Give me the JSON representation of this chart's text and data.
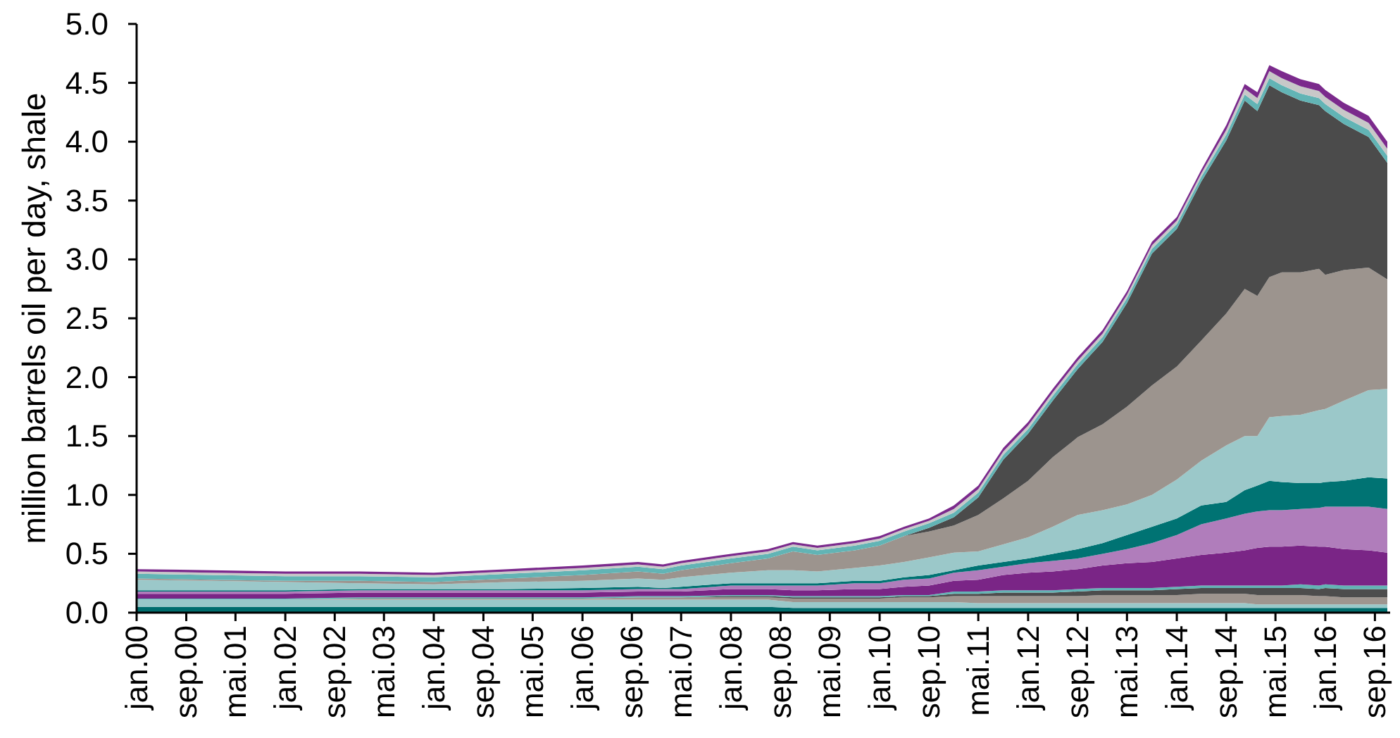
{
  "chart_data": {
    "type": "area",
    "stacked": true,
    "ylabel": "million barrels oil per day, shale",
    "x": [
      "2000-01",
      "2001-01",
      "2002-01",
      "2003-01",
      "2004-01",
      "2005-01",
      "2006-01",
      "2006-10",
      "2007-02",
      "2007-05",
      "2008-01",
      "2008-07",
      "2008-11",
      "2009-03",
      "2009-09",
      "2010-01",
      "2010-05",
      "2010-09",
      "2011-01",
      "2011-05",
      "2011-09",
      "2012-01",
      "2012-05",
      "2012-09",
      "2013-01",
      "2013-05",
      "2013-09",
      "2014-01",
      "2014-05",
      "2014-09",
      "2014-12",
      "2015-02",
      "2015-04",
      "2015-06",
      "2015-09",
      "2015-12",
      "2016-01",
      "2016-04",
      "2016-08",
      "2016-11"
    ],
    "xlim": [
      "2000-01",
      "2016-11"
    ],
    "xticks": [
      {
        "value": "2000-01",
        "label": "jan.00"
      },
      {
        "value": "2000-09",
        "label": "sep.00"
      },
      {
        "value": "2001-05",
        "label": "mai.01"
      },
      {
        "value": "2002-01",
        "label": "jan.02"
      },
      {
        "value": "2002-09",
        "label": "sep.02"
      },
      {
        "value": "2003-05",
        "label": "mai.03"
      },
      {
        "value": "2004-01",
        "label": "jan.04"
      },
      {
        "value": "2004-09",
        "label": "sep.04"
      },
      {
        "value": "2005-05",
        "label": "mai.05"
      },
      {
        "value": "2006-01",
        "label": "jan.06"
      },
      {
        "value": "2006-09",
        "label": "sep.06"
      },
      {
        "value": "2007-05",
        "label": "mai.07"
      },
      {
        "value": "2008-01",
        "label": "jan.08"
      },
      {
        "value": "2008-09",
        "label": "sep.08"
      },
      {
        "value": "2009-05",
        "label": "mai.09"
      },
      {
        "value": "2010-01",
        "label": "jan.10"
      },
      {
        "value": "2010-09",
        "label": "sep.10"
      },
      {
        "value": "2011-05",
        "label": "mai.11"
      },
      {
        "value": "2012-01",
        "label": "jan.12"
      },
      {
        "value": "2012-09",
        "label": "sep.12"
      },
      {
        "value": "2013-05",
        "label": "mai.13"
      },
      {
        "value": "2014-01",
        "label": "jan.14"
      },
      {
        "value": "2014-09",
        "label": "sep.14"
      },
      {
        "value": "2015-05",
        "label": "mai.15"
      },
      {
        "value": "2016-01",
        "label": "jan.16"
      },
      {
        "value": "2016-09",
        "label": "sep.16"
      }
    ],
    "ylim": [
      0,
      5
    ],
    "yticks": [
      {
        "value": 0,
        "label": "0.0"
      },
      {
        "value": 0.5,
        "label": "0.5"
      },
      {
        "value": 1,
        "label": "1.0"
      },
      {
        "value": 1.5,
        "label": "1.5"
      },
      {
        "value": 2,
        "label": "2.0"
      },
      {
        "value": 2.5,
        "label": "2.5"
      },
      {
        "value": 3,
        "label": "3.0"
      },
      {
        "value": 3.5,
        "label": "3.5"
      },
      {
        "value": 4,
        "label": "4.0"
      },
      {
        "value": 4.5,
        "label": "4.5"
      },
      {
        "value": 5,
        "label": "5.0"
      }
    ],
    "series": [
      {
        "color": "#006d6d",
        "values": [
          0.05,
          0.05,
          0.05,
          0.05,
          0.05,
          0.05,
          0.05,
          0.05,
          0.05,
          0.05,
          0.05,
          0.05,
          0.04,
          0.04,
          0.04,
          0.04,
          0.04,
          0.04,
          0.04,
          0.04,
          0.04,
          0.04,
          0.04,
          0.04,
          0.04,
          0.04,
          0.04,
          0.04,
          0.04,
          0.04,
          0.04,
          0.04,
          0.04,
          0.04,
          0.04,
          0.04,
          0.04,
          0.04,
          0.04,
          0.04
        ]
      },
      {
        "color": "#99c8c9",
        "values": [
          0.06,
          0.06,
          0.06,
          0.06,
          0.06,
          0.06,
          0.06,
          0.06,
          0.06,
          0.06,
          0.06,
          0.06,
          0.05,
          0.05,
          0.05,
          0.05,
          0.05,
          0.05,
          0.05,
          0.04,
          0.04,
          0.04,
          0.04,
          0.04,
          0.04,
          0.04,
          0.04,
          0.04,
          0.04,
          0.04,
          0.04,
          0.03,
          0.03,
          0.03,
          0.03,
          0.03,
          0.03,
          0.03,
          0.03,
          0.03
        ]
      },
      {
        "color": "#9e958f",
        "values": [
          0,
          0,
          0,
          0.01,
          0.01,
          0.01,
          0.01,
          0.02,
          0.02,
          0.02,
          0.02,
          0.02,
          0.03,
          0.03,
          0.03,
          0.03,
          0.04,
          0.04,
          0.05,
          0.06,
          0.06,
          0.06,
          0.06,
          0.06,
          0.07,
          0.07,
          0.07,
          0.07,
          0.08,
          0.08,
          0.08,
          0.08,
          0.08,
          0.08,
          0.08,
          0.07,
          0.07,
          0.06,
          0.06,
          0.06
        ]
      },
      {
        "color": "#4d4d4d",
        "values": [
          0,
          0,
          0,
          0,
          0,
          0,
          0,
          0,
          0,
          0,
          0.01,
          0.01,
          0.01,
          0.01,
          0.01,
          0.01,
          0.01,
          0.01,
          0.02,
          0.02,
          0.03,
          0.03,
          0.03,
          0.04,
          0.04,
          0.04,
          0.04,
          0.05,
          0.05,
          0.05,
          0.05,
          0.06,
          0.06,
          0.06,
          0.06,
          0.06,
          0.07,
          0.07,
          0.07,
          0.07
        ]
      },
      {
        "color": "#62b4b5",
        "values": [
          0.01,
          0.01,
          0.01,
          0.01,
          0.01,
          0.01,
          0.01,
          0.01,
          0.01,
          0.01,
          0.01,
          0.01,
          0.01,
          0.01,
          0.01,
          0.01,
          0.01,
          0.01,
          0.02,
          0.02,
          0.02,
          0.02,
          0.02,
          0.02,
          0.02,
          0.02,
          0.02,
          0.02,
          0.02,
          0.02,
          0.02,
          0.02,
          0.02,
          0.02,
          0.03,
          0.03,
          0.03,
          0.03,
          0.03,
          0.03
        ]
      },
      {
        "color": "#7a2586",
        "values": [
          0.04,
          0.04,
          0.04,
          0.04,
          0.04,
          0.04,
          0.04,
          0.04,
          0.04,
          0.04,
          0.05,
          0.05,
          0.05,
          0.05,
          0.06,
          0.06,
          0.07,
          0.08,
          0.09,
          0.1,
          0.13,
          0.15,
          0.16,
          0.17,
          0.19,
          0.21,
          0.22,
          0.24,
          0.26,
          0.28,
          0.3,
          0.32,
          0.33,
          0.33,
          0.33,
          0.33,
          0.32,
          0.31,
          0.3,
          0.28
        ]
      },
      {
        "color": "#b07dbb",
        "values": [
          0.02,
          0.02,
          0.02,
          0.02,
          0.02,
          0.02,
          0.02,
          0.02,
          0.02,
          0.02,
          0.03,
          0.03,
          0.04,
          0.04,
          0.05,
          0.05,
          0.06,
          0.06,
          0.07,
          0.08,
          0.07,
          0.08,
          0.09,
          0.09,
          0.1,
          0.12,
          0.16,
          0.2,
          0.26,
          0.29,
          0.31,
          0.31,
          0.31,
          0.31,
          0.31,
          0.33,
          0.34,
          0.36,
          0.37,
          0.37
        ]
      },
      {
        "color": "#007373",
        "values": [
          0.01,
          0.01,
          0.01,
          0.01,
          0.01,
          0.01,
          0.02,
          0.02,
          0.01,
          0.02,
          0.02,
          0.02,
          0.02,
          0.02,
          0.02,
          0.02,
          0.02,
          0.03,
          0.02,
          0.04,
          0.04,
          0.04,
          0.06,
          0.08,
          0.09,
          0.12,
          0.14,
          0.14,
          0.16,
          0.14,
          0.2,
          0.22,
          0.25,
          0.24,
          0.22,
          0.21,
          0.21,
          0.22,
          0.25,
          0.26
        ]
      },
      {
        "color": "#9bc8c9",
        "values": [
          0.09,
          0.08,
          0.07,
          0.05,
          0.04,
          0.06,
          0.06,
          0.07,
          0.07,
          0.08,
          0.09,
          0.11,
          0.11,
          0.1,
          0.11,
          0.13,
          0.13,
          0.15,
          0.15,
          0.12,
          0.15,
          0.18,
          0.23,
          0.29,
          0.28,
          0.26,
          0.27,
          0.33,
          0.38,
          0.48,
          0.46,
          0.42,
          0.54,
          0.56,
          0.58,
          0.62,
          0.62,
          0.68,
          0.74,
          0.76
        ]
      },
      {
        "color": "#9c948e",
        "values": [
          0.01,
          0.01,
          0.01,
          0.02,
          0.02,
          0.03,
          0.05,
          0.06,
          0.05,
          0.06,
          0.08,
          0.1,
          0.16,
          0.14,
          0.15,
          0.17,
          0.22,
          0.22,
          0.23,
          0.31,
          0.39,
          0.48,
          0.59,
          0.66,
          0.73,
          0.83,
          0.93,
          0.96,
          1.02,
          1.12,
          1.25,
          1.19,
          1.19,
          1.22,
          1.21,
          1.2,
          1.14,
          1.11,
          1.04,
          0.93
        ]
      },
      {
        "color": "#4b4b4b",
        "values": [
          0,
          0,
          0,
          0,
          0,
          0,
          0,
          0,
          0,
          0,
          0,
          0,
          0,
          0,
          0,
          0,
          0,
          0.03,
          0.07,
          0.15,
          0.33,
          0.4,
          0.48,
          0.58,
          0.7,
          0.88,
          1.12,
          1.17,
          1.35,
          1.47,
          1.6,
          1.57,
          1.63,
          1.53,
          1.46,
          1.39,
          1.39,
          1.24,
          1.11,
          0.99
        ]
      },
      {
        "color": "#62b4b5",
        "values": [
          0.04,
          0.04,
          0.04,
          0.04,
          0.04,
          0.04,
          0.04,
          0.04,
          0.04,
          0.04,
          0.04,
          0.04,
          0.04,
          0.04,
          0.04,
          0.04,
          0.04,
          0.04,
          0.04,
          0.04,
          0.04,
          0.04,
          0.04,
          0.04,
          0.04,
          0.04,
          0.04,
          0.04,
          0.04,
          0.05,
          0.05,
          0.06,
          0.06,
          0.06,
          0.06,
          0.06,
          0.06,
          0.06,
          0.06,
          0.06
        ]
      },
      {
        "color": "#c8c8c8",
        "values": [
          0.02,
          0.02,
          0.02,
          0.02,
          0.02,
          0.02,
          0.02,
          0.02,
          0.02,
          0.02,
          0.02,
          0.02,
          0.02,
          0.02,
          0.02,
          0.02,
          0.02,
          0.02,
          0.03,
          0.03,
          0.03,
          0.03,
          0.03,
          0.03,
          0.03,
          0.03,
          0.03,
          0.03,
          0.03,
          0.04,
          0.05,
          0.05,
          0.06,
          0.06,
          0.06,
          0.06,
          0.06,
          0.06,
          0.06,
          0.06
        ]
      },
      {
        "color": "#7b2a8c",
        "values": [
          0.02,
          0.02,
          0.02,
          0.02,
          0.02,
          0.02,
          0.02,
          0.02,
          0.02,
          0.02,
          0.02,
          0.02,
          0.02,
          0.02,
          0.02,
          0.02,
          0.02,
          0.02,
          0.03,
          0.03,
          0.03,
          0.03,
          0.03,
          0.03,
          0.03,
          0.03,
          0.03,
          0.03,
          0.03,
          0.04,
          0.04,
          0.05,
          0.05,
          0.06,
          0.06,
          0.06,
          0.06,
          0.06,
          0.06,
          0.06
        ]
      }
    ]
  }
}
